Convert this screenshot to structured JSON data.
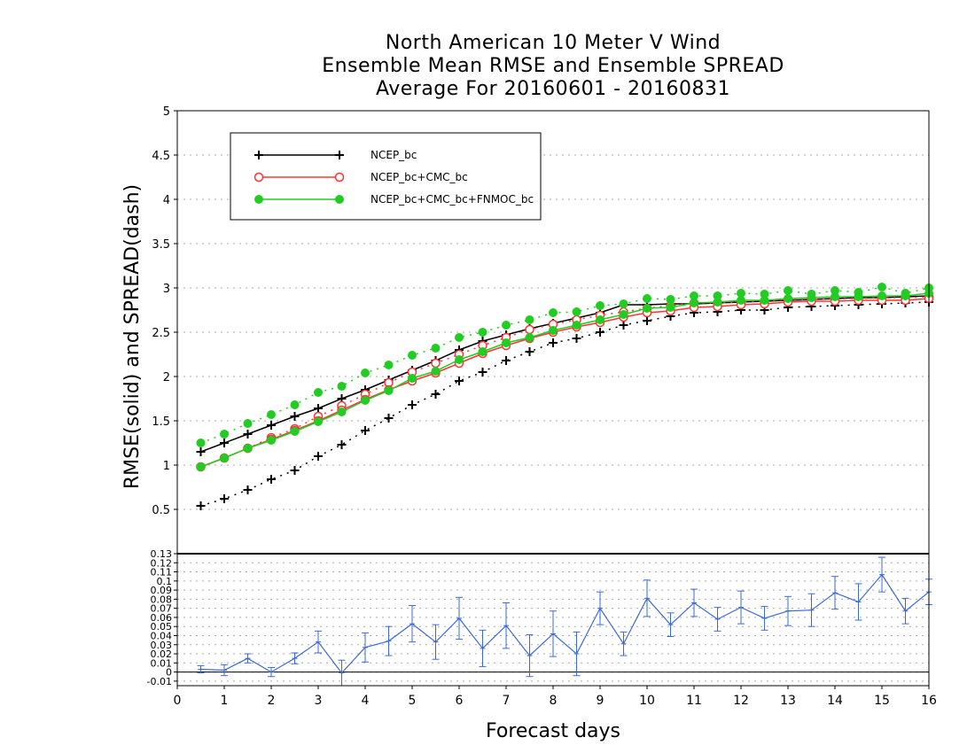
{
  "chart_data": [
    {
      "type": "line",
      "title_lines": [
        "North American 10 Meter V Wind",
        "Ensemble Mean RMSE and Ensemble SPREAD",
        "Average For 20160601 - 20160831"
      ],
      "xlabel": "Forecast days",
      "ylabel": "RMSE(solid) and SPREAD(dash)",
      "xlim": [
        0,
        16
      ],
      "ylim": [
        0,
        5
      ],
      "x_ticks": [
        0,
        1,
        2,
        3,
        4,
        5,
        6,
        7,
        8,
        9,
        10,
        11,
        12,
        13,
        14,
        15,
        16
      ],
      "y_ticks": [
        0.5,
        1,
        1.5,
        2,
        2.5,
        3,
        3.5,
        4,
        4.5,
        5
      ],
      "y_tick_labels": [
        "0.5",
        "1",
        "1.5",
        "2",
        "2.5",
        "3",
        "3.5",
        "4",
        "4.5",
        "5"
      ],
      "grid": true,
      "legend_position": "top-left",
      "x": [
        0.5,
        1,
        1.5,
        2,
        2.5,
        3,
        3.5,
        4,
        4.5,
        5,
        5.5,
        6,
        6.5,
        7,
        7.5,
        8,
        8.5,
        9,
        9.5,
        10,
        10.5,
        11,
        11.5,
        12,
        12.5,
        13,
        13.5,
        14,
        14.5,
        15,
        15.5,
        16
      ],
      "series": [
        {
          "name": "NCEP_bc",
          "color": "#000000",
          "marker": "plus",
          "rmse": [
            1.15,
            1.25,
            1.35,
            1.45,
            1.55,
            1.64,
            1.75,
            1.85,
            1.96,
            2.07,
            2.18,
            2.3,
            2.4,
            2.47,
            2.54,
            2.6,
            2.66,
            2.72,
            2.81,
            2.81,
            2.82,
            2.82,
            2.83,
            2.84,
            2.85,
            2.86,
            2.87,
            2.88,
            2.89,
            2.89,
            2.9,
            2.91
          ],
          "spread": [
            0.54,
            0.62,
            0.72,
            0.84,
            0.94,
            1.1,
            1.23,
            1.39,
            1.53,
            1.68,
            1.8,
            1.95,
            2.05,
            2.18,
            2.28,
            2.38,
            2.43,
            2.5,
            2.58,
            2.63,
            2.68,
            2.72,
            2.73,
            2.75,
            2.75,
            2.78,
            2.79,
            2.8,
            2.81,
            2.82,
            2.83,
            2.84
          ]
        },
        {
          "name": "NCEP_bc+CMC_bc",
          "color": "#ff3333",
          "marker": "open-circle",
          "rmse": [
            0.98,
            1.08,
            1.19,
            1.29,
            1.39,
            1.5,
            1.62,
            1.74,
            1.85,
            1.95,
            2.04,
            2.15,
            2.26,
            2.35,
            2.43,
            2.5,
            2.56,
            2.61,
            2.67,
            2.72,
            2.74,
            2.78,
            2.79,
            2.81,
            2.82,
            2.84,
            2.85,
            2.85,
            2.86,
            2.86,
            2.86,
            2.88
          ],
          "spread": [
            0.98,
            1.08,
            1.19,
            1.31,
            1.41,
            1.55,
            1.67,
            1.8,
            1.93,
            2.05,
            2.15,
            2.25,
            2.35,
            2.44,
            2.53,
            2.59,
            2.64,
            2.69,
            2.73,
            2.77,
            2.8,
            2.83,
            2.83,
            2.84,
            2.85,
            2.87,
            2.87,
            2.88,
            2.88,
            2.89,
            2.89,
            2.9
          ]
        },
        {
          "name": "NCEP_bc+CMC_bc+FNMOC_bc",
          "color": "#22cc22",
          "marker": "filled-circle",
          "rmse": [
            0.98,
            1.08,
            1.19,
            1.28,
            1.38,
            1.49,
            1.6,
            1.73,
            1.84,
            1.98,
            2.06,
            2.19,
            2.28,
            2.38,
            2.44,
            2.52,
            2.58,
            2.64,
            2.7,
            2.77,
            2.78,
            2.83,
            2.84,
            2.86,
            2.86,
            2.88,
            2.89,
            2.9,
            2.9,
            2.91,
            2.91,
            2.94
          ],
          "spread": [
            1.25,
            1.35,
            1.47,
            1.57,
            1.68,
            1.82,
            1.89,
            2.04,
            2.13,
            2.24,
            2.32,
            2.44,
            2.5,
            2.58,
            2.64,
            2.72,
            2.73,
            2.8,
            2.82,
            2.88,
            2.87,
            2.91,
            2.91,
            2.94,
            2.93,
            2.97,
            2.93,
            2.97,
            2.95,
            3.01,
            2.94,
            3.0
          ]
        }
      ]
    },
    {
      "type": "line",
      "xlabel": "Forecast days",
      "xlim": [
        0,
        16
      ],
      "ylim": [
        -0.015,
        0.13
      ],
      "y_ticks": [
        -0.01,
        0,
        0.01,
        0.02,
        0.03,
        0.04,
        0.05,
        0.06,
        0.07,
        0.08,
        0.09,
        0.1,
        0.11,
        0.12,
        0.13
      ],
      "y_tick_labels": [
        "-0.01",
        "0",
        "0.01",
        "0.02",
        "0.03",
        "0.04",
        "0.05",
        "0.06",
        "0.07",
        "0.08",
        "0.09",
        "0.1",
        "0.11",
        "0.12",
        "0.13"
      ],
      "grid": true,
      "color": "#3a6ad8",
      "x": [
        0.5,
        1,
        1.5,
        2,
        2.5,
        3,
        3.5,
        4,
        4.5,
        5,
        5.5,
        6,
        6.5,
        7,
        7.5,
        8,
        8.5,
        9,
        9.5,
        10,
        10.5,
        11,
        11.5,
        12,
        12.5,
        13,
        13.5,
        14,
        14.5,
        15,
        15.5,
        16
      ],
      "values": [
        0.003,
        0.002,
        0.015,
        0.0,
        0.015,
        0.033,
        -0.001,
        0.027,
        0.034,
        0.053,
        0.033,
        0.059,
        0.026,
        0.051,
        0.018,
        0.042,
        0.02,
        0.07,
        0.031,
        0.081,
        0.052,
        0.076,
        0.058,
        0.071,
        0.059,
        0.067,
        0.068,
        0.087,
        0.077,
        0.107,
        0.067,
        0.088
      ],
      "error_low": [
        -0.001,
        -0.004,
        0.01,
        -0.005,
        0.009,
        0.021,
        -0.015,
        0.011,
        0.018,
        0.033,
        0.014,
        0.036,
        0.006,
        0.026,
        -0.005,
        0.017,
        -0.004,
        0.052,
        0.018,
        0.061,
        0.039,
        0.061,
        0.045,
        0.053,
        0.046,
        0.051,
        0.05,
        0.069,
        0.057,
        0.088,
        0.053,
        0.074
      ],
      "error_high": [
        0.007,
        0.008,
        0.02,
        0.005,
        0.021,
        0.045,
        0.013,
        0.043,
        0.05,
        0.073,
        0.052,
        0.082,
        0.046,
        0.076,
        0.041,
        0.067,
        0.044,
        0.088,
        0.044,
        0.101,
        0.065,
        0.091,
        0.071,
        0.089,
        0.072,
        0.083,
        0.086,
        0.105,
        0.097,
        0.126,
        0.081,
        0.102
      ]
    }
  ]
}
